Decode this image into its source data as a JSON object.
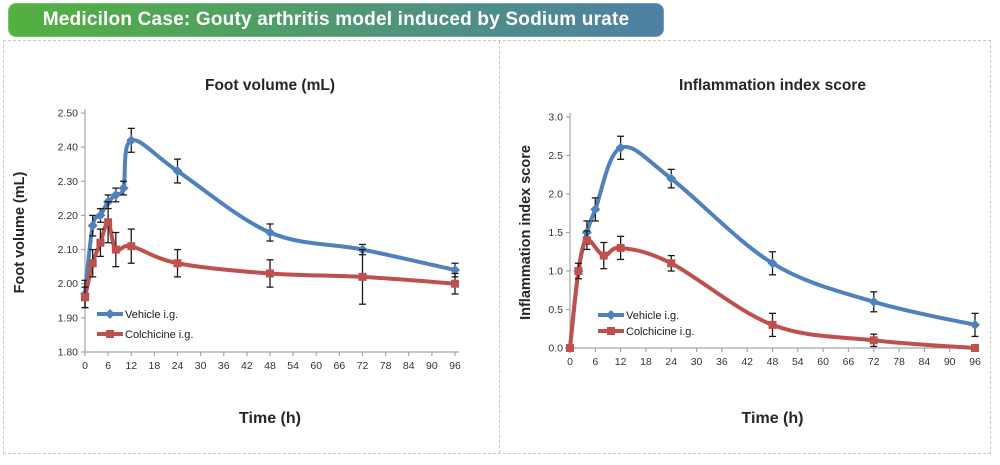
{
  "header": {
    "title": "Medicilon Case: Gouty arthritis model induced by Sodium urate",
    "gradient_from": "#52b13f",
    "gradient_to": "#4e80a5"
  },
  "chart_data": [
    {
      "id": "foot_volume",
      "type": "line",
      "title": "Foot volume (mL)",
      "xlabel": "Time (h)",
      "ylabel": "Foot volume (mL)",
      "xlim": [
        0,
        96
      ],
      "ylim": [
        1.8,
        2.5
      ],
      "xticks": [
        "0",
        "6",
        "12",
        "18",
        "24",
        "30",
        "36",
        "42",
        "48",
        "54",
        "60",
        "66",
        "72",
        "78",
        "84",
        "90",
        "96"
      ],
      "yticks": [
        "1.80",
        "1.90",
        "2.00",
        "2.10",
        "2.20",
        "2.30",
        "2.40",
        "2.50"
      ],
      "grid": false,
      "legend_position": "inside-bottom-left",
      "series": [
        {
          "name": "Vehicle i.g.",
          "color": "#4F81BD",
          "marker": "diamond",
          "x": [
            0,
            2,
            4,
            6,
            8,
            10,
            12,
            24,
            48,
            72,
            96
          ],
          "y": [
            1.97,
            2.17,
            2.2,
            2.24,
            2.26,
            2.28,
            2.42,
            2.33,
            2.15,
            2.1,
            2.04
          ],
          "err": [
            0.04,
            0.03,
            0.02,
            0.02,
            0.02,
            0.02,
            0.035,
            0.035,
            0.025,
            0.015,
            0.02
          ]
        },
        {
          "name": "Colchicine i.g.",
          "color": "#C0504D",
          "marker": "square",
          "x": [
            0,
            2,
            4,
            6,
            8,
            12,
            24,
            48,
            72,
            96
          ],
          "y": [
            1.96,
            2.06,
            2.12,
            2.18,
            2.1,
            2.11,
            2.06,
            2.03,
            2.02,
            2.0
          ],
          "err": [
            0.03,
            0.04,
            0.04,
            0.06,
            0.05,
            0.05,
            0.04,
            0.04,
            0.08,
            0.03
          ]
        }
      ]
    },
    {
      "id": "inflammation_index",
      "type": "line",
      "title": "Inflammation index score",
      "xlabel": "Time (h)",
      "ylabel": "Inflammation index score",
      "xlim": [
        0,
        96
      ],
      "ylim": [
        0.0,
        3.0
      ],
      "xticks": [
        "0",
        "6",
        "12",
        "18",
        "24",
        "30",
        "36",
        "42",
        "48",
        "54",
        "60",
        "66",
        "72",
        "78",
        "84",
        "90",
        "96"
      ],
      "yticks": [
        "0.0",
        "0.5",
        "1.0",
        "1.5",
        "2.0",
        "2.5",
        "3.0"
      ],
      "grid": false,
      "legend_position": "inside-bottom-left",
      "series": [
        {
          "name": "Vehicle i.g.",
          "color": "#4F81BD",
          "marker": "diamond",
          "x": [
            0,
            2,
            4,
            6,
            12,
            24,
            48,
            72,
            96
          ],
          "y": [
            0.0,
            1.0,
            1.5,
            1.8,
            2.6,
            2.2,
            1.1,
            0.6,
            0.3
          ],
          "err": [
            0,
            0,
            0.15,
            0.15,
            0.15,
            0.12,
            0.15,
            0.13,
            0.15
          ]
        },
        {
          "name": "Colchicine i.g.",
          "color": "#C0504D",
          "marker": "square",
          "x": [
            0,
            2,
            4,
            8,
            12,
            24,
            48,
            72,
            96
          ],
          "y": [
            0.0,
            1.0,
            1.4,
            1.2,
            1.3,
            1.1,
            0.3,
            0.1,
            0.0
          ],
          "err": [
            0,
            0.1,
            0.12,
            0.17,
            0.15,
            0.1,
            0.15,
            0.08,
            0
          ]
        }
      ]
    }
  ]
}
